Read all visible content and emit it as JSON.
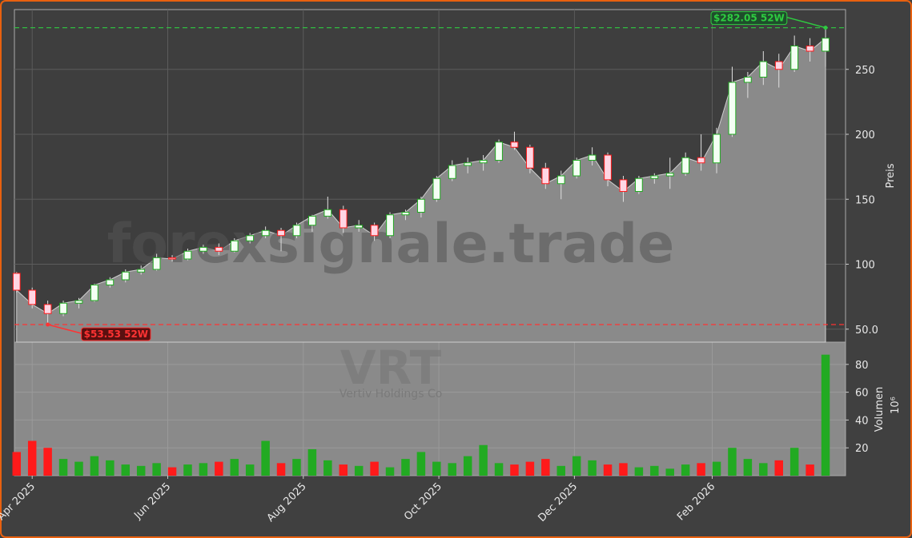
{
  "chart_data": {
    "type": "candlestick",
    "watermark": "forexsignale.trade",
    "ticker": "VRT",
    "company": "Vertiv Holdings Co",
    "ylabel": "Preis",
    "x": [
      -7,
      0,
      7,
      14,
      21,
      28,
      35,
      42,
      49,
      56,
      63,
      70,
      77,
      84,
      91,
      98,
      105,
      112,
      119,
      126,
      133,
      140,
      147,
      154,
      161,
      168,
      175,
      182,
      189,
      196,
      203,
      210,
      217,
      224,
      231,
      238,
      245,
      252,
      259,
      266,
      273,
      280,
      287,
      294,
      301,
      308,
      315,
      322,
      329,
      336,
      343,
      350,
      357
    ],
    "open": [
      93,
      80,
      69,
      62,
      70,
      72,
      84,
      88,
      94,
      96,
      105,
      104,
      110,
      113,
      110,
      118,
      122,
      126,
      122,
      130,
      137,
      142,
      128,
      130,
      122,
      138,
      140,
      150,
      166,
      176,
      178,
      180,
      194,
      190,
      174,
      162,
      168,
      180,
      184,
      165,
      156,
      166,
      168,
      170,
      182,
      178,
      200,
      240,
      244,
      256,
      250,
      268,
      264
    ],
    "high": [
      94,
      82,
      72,
      72,
      74,
      85,
      90,
      96,
      99,
      108,
      107,
      112,
      115,
      116,
      120,
      124,
      129,
      128,
      132,
      138,
      152,
      145,
      134,
      132,
      140,
      142,
      152,
      168,
      180,
      182,
      184,
      196,
      202,
      192,
      178,
      172,
      182,
      190,
      186,
      168,
      168,
      170,
      182,
      186,
      200,
      205,
      252,
      248,
      264,
      262,
      276,
      274,
      282.05
    ],
    "low": [
      78,
      66,
      53.53,
      60,
      66,
      71,
      82,
      86,
      92,
      95,
      102,
      103,
      108,
      107,
      109,
      116,
      120,
      110,
      120,
      125,
      135,
      124,
      125,
      118,
      120,
      134,
      136,
      148,
      164,
      170,
      172,
      178,
      188,
      170,
      158,
      150,
      166,
      176,
      160,
      148,
      154,
      162,
      158,
      168,
      172,
      170,
      198,
      228,
      238,
      236,
      248,
      256,
      252
    ],
    "close": [
      80,
      69,
      62,
      70,
      72,
      84,
      88,
      94,
      96,
      105,
      104,
      110,
      113,
      110,
      118,
      122,
      126,
      122,
      130,
      137,
      142,
      128,
      130,
      122,
      138,
      140,
      150,
      166,
      176,
      178,
      180,
      194,
      190,
      174,
      162,
      168,
      180,
      184,
      165,
      156,
      166,
      168,
      170,
      182,
      178,
      200,
      240,
      244,
      256,
      250,
      268,
      264,
      274
    ],
    "up_color": "#22aa22",
    "down_color": "#ff1a1a",
    "area_color": "#8a8a8a",
    "xlim": [
      -8,
      366
    ],
    "xticks": [
      {
        "value": 0,
        "label": "Apr 2025"
      },
      {
        "value": 61,
        "label": "Jun 2025"
      },
      {
        "value": 122,
        "label": "Aug 2025"
      },
      {
        "value": 183,
        "label": "Oct 2025"
      },
      {
        "value": 244,
        "label": "Dec 2025"
      },
      {
        "value": 306,
        "label": "Feb 2026"
      }
    ],
    "ylim": [
      40,
      296
    ],
    "yticks": [
      {
        "value": 50,
        "label": "50.0"
      },
      100,
      150,
      200,
      250
    ],
    "grid": true,
    "annotations": [
      {
        "text": "$282.05 52W",
        "value": 282.05,
        "x": 357,
        "color": "#2ecc40"
      },
      {
        "text": "$53.53 52W",
        "value": 53.53,
        "x": 7,
        "color": "#ff3333"
      }
    ],
    "volume": {
      "label": "Volumen",
      "unit": "10⁶",
      "values": [
        17,
        25,
        20,
        12,
        10,
        14,
        11,
        8,
        7,
        9,
        6,
        8,
        9,
        10,
        12,
        8,
        25,
        9,
        12,
        19,
        11,
        8,
        7,
        10,
        6,
        12,
        17,
        10,
        9,
        14,
        22,
        9,
        8,
        10,
        12,
        7,
        14,
        11,
        8,
        9,
        6,
        7,
        5,
        8,
        9,
        10,
        20,
        12,
        9,
        11,
        20,
        8,
        87
      ],
      "ylim": [
        0,
        96
      ],
      "yticks": [
        20,
        40,
        60,
        80
      ]
    }
  }
}
